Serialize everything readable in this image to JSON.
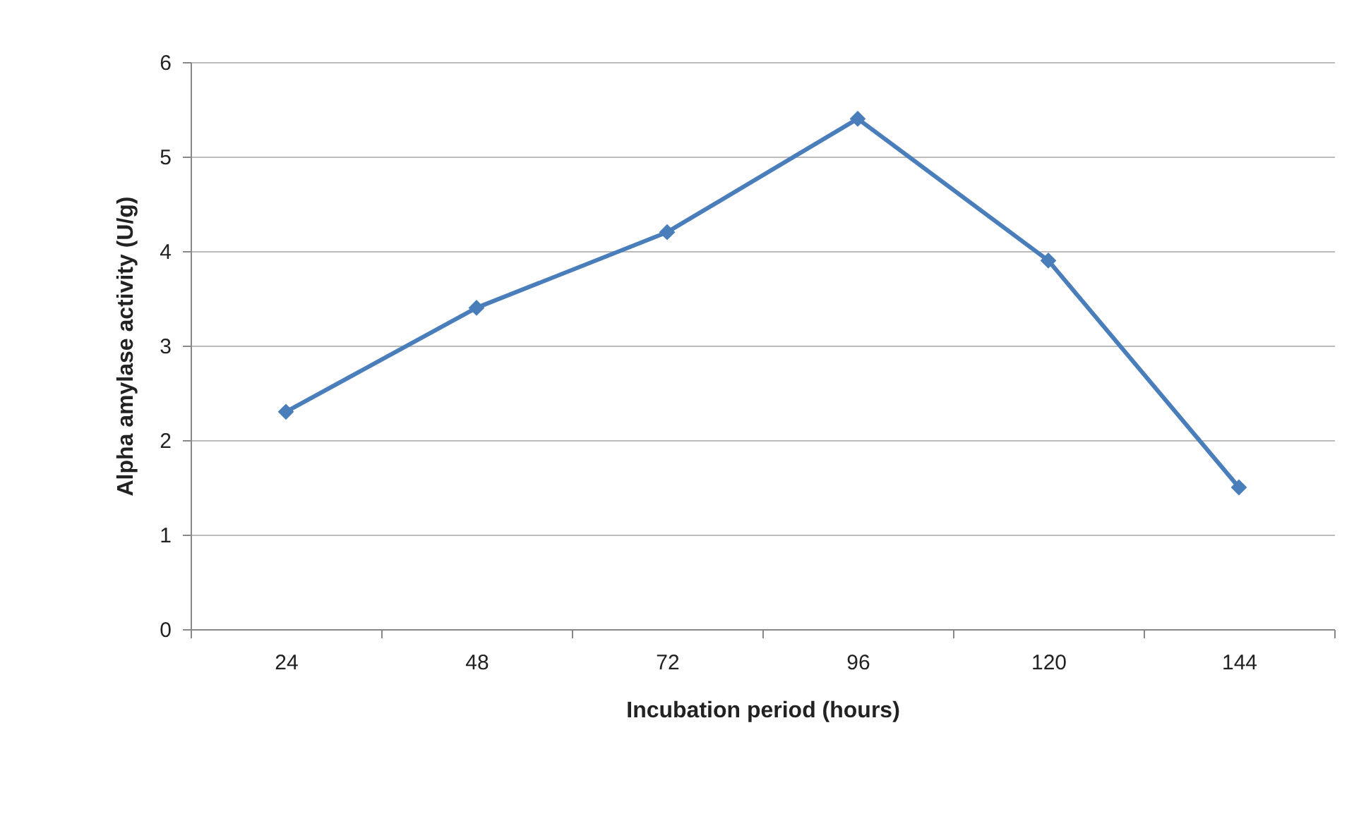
{
  "chart_data": {
    "type": "line",
    "xlabel": "Incubation period (hours)",
    "ylabel": "Alpha amylase activity (U/g)",
    "categories": [
      "24",
      "48",
      "72",
      "96",
      "120",
      "144"
    ],
    "series": [
      {
        "color": "#4a7ebb",
        "values": [
          2.3,
          3.4,
          4.2,
          5.4,
          3.9,
          1.5
        ]
      }
    ],
    "ylim": [
      0,
      6
    ],
    "yticks": [
      0,
      1,
      2,
      3,
      4,
      5,
      6
    ],
    "grid": "y",
    "marker": "diamond",
    "line_style": "solid"
  }
}
